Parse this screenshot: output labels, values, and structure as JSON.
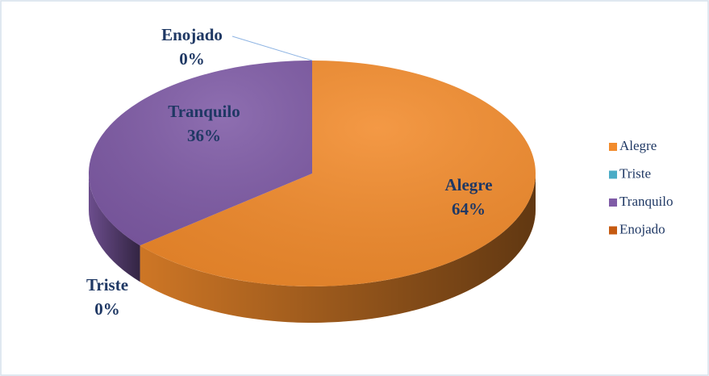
{
  "chart_data": {
    "type": "pie",
    "categories": [
      "Alegre",
      "Triste",
      "Tranquilo",
      "Enojado"
    ],
    "values": [
      64,
      0,
      36,
      0
    ],
    "value_labels": [
      "64%",
      "0%",
      "36%",
      "0%"
    ],
    "colors": [
      "#f28b2c",
      "#4bacc6",
      "#7f5ba6",
      "#c55a11"
    ],
    "legend": "right"
  }
}
